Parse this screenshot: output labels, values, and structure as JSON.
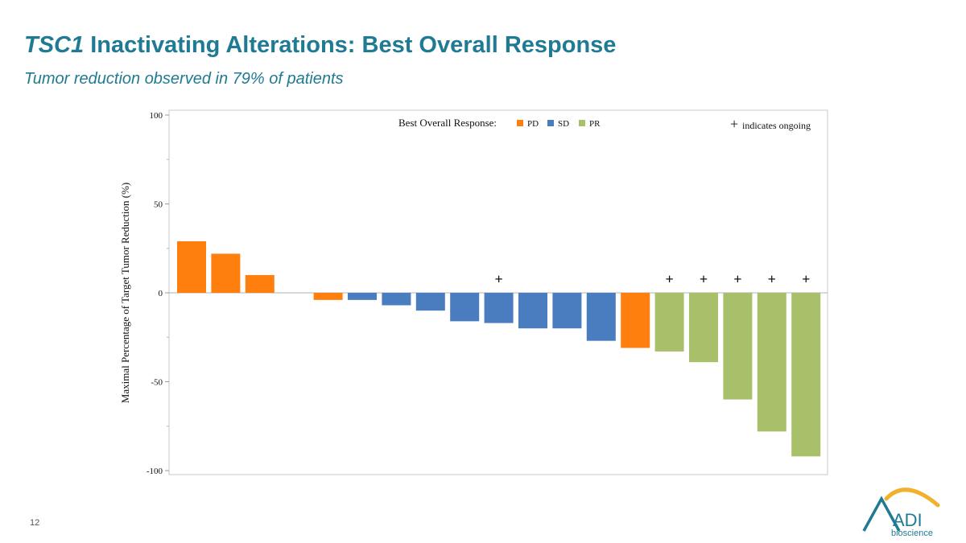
{
  "slide": {
    "title_italic": "TSC1",
    "title_rest": " Inactivating Alterations: Best Overall Response",
    "subtitle": "Tumor reduction observed in 79% of patients",
    "page_number": "12"
  },
  "logo": {
    "text": "bioscience",
    "mark_text": "ADI",
    "colors": {
      "mark": "#1f7a93",
      "arc": "#f2b12d"
    }
  },
  "colors": {
    "title": "#1f7a93",
    "PD": "#ff7f0e",
    "SD": "#4a7cc0",
    "PR": "#a8c06a"
  },
  "chart_data": {
    "type": "bar",
    "ylabel": "Maximal Percentage of Target Tumor Reduction (%)",
    "xlabel": "",
    "ylim": [
      -100,
      100
    ],
    "yticks": [
      100,
      50,
      0,
      -50,
      -100
    ],
    "grid": false,
    "legend": {
      "title": "Best Overall Response:",
      "placement": "top-center",
      "entries": [
        "PD",
        "SD",
        "PR"
      ]
    },
    "ongoing_note": {
      "symbol": "+",
      "text": "indicates ongoing",
      "placement": "top-right"
    },
    "bars": [
      {
        "value": 29,
        "response": "PD",
        "ongoing": false
      },
      {
        "value": 22,
        "response": "PD",
        "ongoing": false
      },
      {
        "value": 10,
        "response": "PD",
        "ongoing": false
      },
      {
        "value": null,
        "response": "",
        "ongoing": false
      },
      {
        "value": -4,
        "response": "PD",
        "ongoing": false
      },
      {
        "value": -4,
        "response": "SD",
        "ongoing": false
      },
      {
        "value": -7,
        "response": "SD",
        "ongoing": false
      },
      {
        "value": -10,
        "response": "SD",
        "ongoing": false
      },
      {
        "value": -16,
        "response": "SD",
        "ongoing": false
      },
      {
        "value": -17,
        "response": "SD",
        "ongoing": true
      },
      {
        "value": -20,
        "response": "SD",
        "ongoing": false
      },
      {
        "value": -20,
        "response": "SD",
        "ongoing": false
      },
      {
        "value": -27,
        "response": "SD",
        "ongoing": false
      },
      {
        "value": -31,
        "response": "PD",
        "ongoing": false
      },
      {
        "value": -33,
        "response": "PR",
        "ongoing": true
      },
      {
        "value": -39,
        "response": "PR",
        "ongoing": true
      },
      {
        "value": -60,
        "response": "PR",
        "ongoing": true
      },
      {
        "value": -78,
        "response": "PR",
        "ongoing": true
      },
      {
        "value": -92,
        "response": "PR",
        "ongoing": true
      }
    ]
  }
}
